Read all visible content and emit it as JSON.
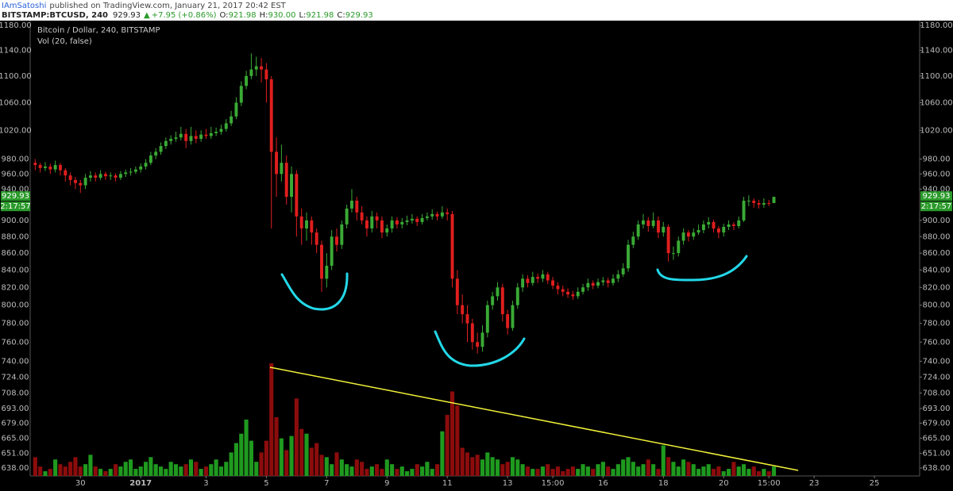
{
  "header": {
    "author": "IAmSatoshi",
    "published": "published on TradingView.com, January 21, 2017 20:42 EST"
  },
  "quote": {
    "symbol": "BITSTAMP:BTCUSD, 240",
    "last": "929.93",
    "change": "+7.95 (+0.86%)",
    "o_label": "O:",
    "o": "921.98",
    "h_label": "H:",
    "h": "930.00",
    "l_label": "L:",
    "l": "921.98",
    "c_label": "C:",
    "c": "929.93"
  },
  "chart_data": {
    "type": "candlestick",
    "title": "Bitcoin / Dollar, 240, BITSTAMP",
    "volume_title": "Vol (20, false)",
    "log_scale": true,
    "grid": false,
    "up_color": "#3aaa35",
    "down_color": "#e01e1e",
    "volume_up_color": "#1f9a1f",
    "volume_down_color": "#8c0c0c",
    "last_price_label": "929.93",
    "countdown": "2:17:57",
    "xlim": [
      -1,
      176
    ],
    "xticks": [
      {
        "value": 9,
        "label": "30"
      },
      {
        "value": 21,
        "label": "2017"
      },
      {
        "value": 34,
        "label": "3"
      },
      {
        "value": 46,
        "label": "5"
      },
      {
        "value": 58,
        "label": "7"
      },
      {
        "value": 70,
        "label": "9"
      },
      {
        "value": 82,
        "label": "11"
      },
      {
        "value": 94,
        "label": "13"
      },
      {
        "value": 103,
        "label": "15:00"
      },
      {
        "value": 113,
        "label": "16"
      },
      {
        "value": 125,
        "label": "18"
      },
      {
        "value": 137,
        "label": "20"
      },
      {
        "value": 146,
        "label": "15:00"
      },
      {
        "value": 155,
        "label": "23"
      },
      {
        "value": 167,
        "label": "25"
      }
    ],
    "ylim": [
      631,
      1188
    ],
    "yticks": [
      {
        "value": 638,
        "label": "638.00"
      },
      {
        "value": 651,
        "label": "651.00"
      },
      {
        "value": 665,
        "label": "665.00"
      },
      {
        "value": 679,
        "label": "679.00"
      },
      {
        "value": 693,
        "label": "693.00"
      },
      {
        "value": 708,
        "label": "708.00"
      },
      {
        "value": 724,
        "label": "724.00"
      },
      {
        "value": 740,
        "label": "740.00"
      },
      {
        "value": 760,
        "label": "760.00"
      },
      {
        "value": 780,
        "label": "780.00"
      },
      {
        "value": 800,
        "label": "800.00"
      },
      {
        "value": 820,
        "label": "820.00"
      },
      {
        "value": 840,
        "label": "840.00"
      },
      {
        "value": 860,
        "label": "860.00"
      },
      {
        "value": 880,
        "label": "880.00"
      },
      {
        "value": 900,
        "label": "900.00"
      },
      {
        "value": 940,
        "label": "940.00"
      },
      {
        "value": 960,
        "label": "960.00"
      },
      {
        "value": 980,
        "label": "980.00"
      },
      {
        "value": 1020,
        "label": "1020.00"
      },
      {
        "value": 1060,
        "label": "1060.00"
      },
      {
        "value": 1100,
        "label": "1100.00"
      },
      {
        "value": 1140,
        "label": "1140.00"
      },
      {
        "value": 1180,
        "label": "1180.00"
      }
    ],
    "vlim": [
      0,
      100
    ],
    "ohlc": [
      [
        975,
        980,
        965,
        972
      ],
      [
        972,
        975,
        962,
        968
      ],
      [
        968,
        976,
        964,
        970
      ],
      [
        970,
        974,
        960,
        966
      ],
      [
        966,
        978,
        962,
        972
      ],
      [
        972,
        975,
        958,
        965
      ],
      [
        965,
        968,
        950,
        958
      ],
      [
        958,
        962,
        945,
        952
      ],
      [
        952,
        956,
        940,
        948
      ],
      [
        948,
        952,
        935,
        945
      ],
      [
        945,
        960,
        940,
        955
      ],
      [
        955,
        964,
        950,
        958
      ],
      [
        958,
        962,
        950,
        955
      ],
      [
        955,
        965,
        952,
        960
      ],
      [
        960,
        963,
        952,
        957
      ],
      [
        957,
        962,
        952,
        958
      ],
      [
        958,
        961,
        950,
        955
      ],
      [
        955,
        964,
        952,
        960
      ],
      [
        960,
        966,
        956,
        962
      ],
      [
        962,
        968,
        958,
        963
      ],
      [
        963,
        970,
        960,
        966
      ],
      [
        966,
        974,
        962,
        970
      ],
      [
        970,
        980,
        966,
        975
      ],
      [
        975,
        990,
        972,
        985
      ],
      [
        985,
        995,
        980,
        990
      ],
      [
        990,
        1003,
        986,
        998
      ],
      [
        998,
        1010,
        994,
        1005
      ],
      [
        1005,
        1013,
        1000,
        1008
      ],
      [
        1008,
        1018,
        1004,
        1010
      ],
      [
        1010,
        1025,
        1006,
        1015
      ],
      [
        1015,
        1022,
        995,
        1005
      ],
      [
        1005,
        1025,
        1000,
        1012
      ],
      [
        1012,
        1020,
        1002,
        1008
      ],
      [
        1008,
        1020,
        1004,
        1014
      ],
      [
        1014,
        1022,
        1008,
        1012
      ],
      [
        1012,
        1025,
        1008,
        1016
      ],
      [
        1016,
        1024,
        1012,
        1018
      ],
      [
        1018,
        1028,
        1014,
        1022
      ],
      [
        1022,
        1036,
        1018,
        1030
      ],
      [
        1030,
        1048,
        1026,
        1040
      ],
      [
        1040,
        1068,
        1036,
        1060
      ],
      [
        1060,
        1092,
        1055,
        1085
      ],
      [
        1085,
        1108,
        1080,
        1100
      ],
      [
        1100,
        1135,
        1095,
        1110
      ],
      [
        1110,
        1130,
        1100,
        1115
      ],
      [
        1115,
        1128,
        1090,
        1110
      ],
      [
        1110,
        1120,
        1060,
        1095
      ],
      [
        1095,
        1100,
        890,
        990
      ],
      [
        990,
        1010,
        930,
        960
      ],
      [
        960,
        1000,
        950,
        975
      ],
      [
        975,
        985,
        920,
        930
      ],
      [
        930,
        970,
        910,
        960
      ],
      [
        960,
        965,
        880,
        905
      ],
      [
        905,
        915,
        870,
        890
      ],
      [
        890,
        910,
        875,
        900
      ],
      [
        900,
        905,
        870,
        885
      ],
      [
        885,
        890,
        860,
        870
      ],
      [
        870,
        875,
        815,
        830
      ],
      [
        830,
        860,
        820,
        845
      ],
      [
        845,
        888,
        840,
        880
      ],
      [
        880,
        890,
        862,
        870
      ],
      [
        870,
        900,
        865,
        895
      ],
      [
        895,
        920,
        890,
        915
      ],
      [
        915,
        940,
        910,
        925
      ],
      [
        925,
        930,
        900,
        910
      ],
      [
        910,
        918,
        895,
        900
      ],
      [
        900,
        905,
        880,
        890
      ],
      [
        890,
        912,
        885,
        905
      ],
      [
        905,
        910,
        890,
        900
      ],
      [
        900,
        905,
        878,
        885
      ],
      [
        885,
        895,
        880,
        890
      ],
      [
        890,
        905,
        885,
        900
      ],
      [
        900,
        904,
        890,
        895
      ],
      [
        895,
        903,
        890,
        898
      ],
      [
        898,
        906,
        894,
        900
      ],
      [
        900,
        908,
        896,
        902
      ],
      [
        902,
        905,
        893,
        898
      ],
      [
        898,
        908,
        895,
        903
      ],
      [
        903,
        910,
        900,
        905
      ],
      [
        905,
        914,
        901,
        908
      ],
      [
        908,
        911,
        900,
        905
      ],
      [
        905,
        918,
        902,
        910
      ],
      [
        910,
        915,
        900,
        908
      ],
      [
        908,
        912,
        820,
        830
      ],
      [
        830,
        840,
        790,
        800
      ],
      [
        800,
        812,
        780,
        790
      ],
      [
        790,
        800,
        760,
        780
      ],
      [
        780,
        785,
        752,
        760
      ],
      [
        760,
        770,
        748,
        755
      ],
      [
        755,
        778,
        750,
        770
      ],
      [
        770,
        805,
        765,
        800
      ],
      [
        800,
        815,
        795,
        810
      ],
      [
        810,
        826,
        805,
        820
      ],
      [
        820,
        824,
        782,
        790
      ],
      [
        790,
        795,
        768,
        775
      ],
      [
        775,
        805,
        772,
        800
      ],
      [
        800,
        825,
        796,
        820
      ],
      [
        820,
        835,
        815,
        830
      ],
      [
        830,
        834,
        820,
        825
      ],
      [
        825,
        838,
        822,
        832
      ],
      [
        832,
        836,
        825,
        830
      ],
      [
        830,
        840,
        826,
        835
      ],
      [
        835,
        838,
        824,
        828
      ],
      [
        828,
        832,
        818,
        822
      ],
      [
        822,
        826,
        812,
        818
      ],
      [
        818,
        822,
        810,
        815
      ],
      [
        815,
        819,
        808,
        812
      ],
      [
        812,
        816,
        806,
        810
      ],
      [
        810,
        820,
        807,
        815
      ],
      [
        815,
        824,
        812,
        820
      ],
      [
        820,
        830,
        816,
        825
      ],
      [
        825,
        828,
        818,
        822
      ],
      [
        822,
        830,
        819,
        826
      ],
      [
        826,
        832,
        822,
        828
      ],
      [
        828,
        831,
        820,
        825
      ],
      [
        825,
        835,
        822,
        830
      ],
      [
        830,
        840,
        826,
        835
      ],
      [
        835,
        848,
        832,
        842
      ],
      [
        842,
        876,
        838,
        870
      ],
      [
        870,
        886,
        866,
        880
      ],
      [
        880,
        900,
        876,
        895
      ],
      [
        895,
        908,
        890,
        900
      ],
      [
        900,
        904,
        886,
        893
      ],
      [
        893,
        910,
        890,
        900
      ],
      [
        900,
        905,
        878,
        885
      ],
      [
        885,
        898,
        880,
        892
      ],
      [
        892,
        895,
        850,
        860
      ],
      [
        860,
        868,
        852,
        860
      ],
      [
        860,
        880,
        856,
        875
      ],
      [
        875,
        890,
        870,
        885
      ],
      [
        885,
        888,
        874,
        880
      ],
      [
        880,
        890,
        876,
        885
      ],
      [
        885,
        895,
        882,
        888
      ],
      [
        888,
        900,
        884,
        895
      ],
      [
        895,
        904,
        890,
        898
      ],
      [
        898,
        901,
        885,
        890
      ],
      [
        890,
        893,
        878,
        885
      ],
      [
        885,
        896,
        880,
        892
      ],
      [
        892,
        900,
        888,
        895
      ],
      [
        895,
        898,
        888,
        893
      ],
      [
        893,
        905,
        890,
        900
      ],
      [
        900,
        930,
        898,
        925
      ],
      [
        925,
        932,
        918,
        925
      ],
      [
        925,
        928,
        916,
        922
      ],
      [
        922,
        926,
        915,
        920
      ],
      [
        920,
        928,
        916,
        922
      ],
      [
        922,
        926,
        918,
        921.98
      ],
      [
        921.98,
        930,
        921.98,
        929.93
      ]
    ],
    "volume": [
      16,
      8,
      4,
      6,
      14,
      10,
      8,
      12,
      16,
      8,
      10,
      18,
      8,
      6,
      4,
      6,
      10,
      8,
      12,
      14,
      6,
      8,
      12,
      16,
      10,
      8,
      6,
      12,
      10,
      8,
      10,
      14,
      12,
      6,
      8,
      10,
      14,
      8,
      12,
      20,
      28,
      36,
      48,
      30,
      12,
      20,
      30,
      96,
      50,
      32,
      22,
      34,
      66,
      40,
      36,
      24,
      28,
      18,
      16,
      10,
      20,
      14,
      10,
      8,
      14,
      12,
      6,
      8,
      10,
      6,
      14,
      10,
      6,
      8,
      4,
      6,
      10,
      8,
      12,
      6,
      10,
      38,
      52,
      72,
      60,
      24,
      20,
      16,
      18,
      14,
      20,
      16,
      14,
      10,
      12,
      16,
      14,
      10,
      8,
      6,
      6,
      8,
      10,
      6,
      8,
      4,
      6,
      8,
      6,
      10,
      8,
      6,
      10,
      12,
      8,
      6,
      10,
      14,
      16,
      12,
      8,
      10,
      14,
      10,
      6,
      26,
      16,
      12,
      8,
      14,
      12,
      10,
      6,
      8,
      10,
      6,
      8,
      4,
      6,
      12,
      8,
      10,
      6,
      8,
      4,
      6,
      4,
      8
    ]
  }
}
